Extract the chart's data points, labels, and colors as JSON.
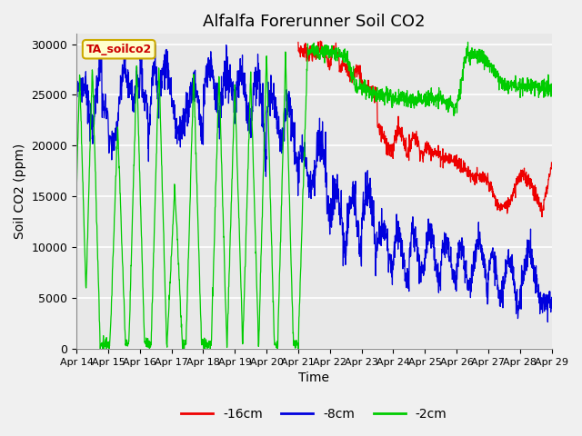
{
  "title": "Alfalfa Forerunner Soil CO2",
  "xlabel": "Time",
  "ylabel": "Soil CO2 (ppm)",
  "ylim": [
    0,
    31000
  ],
  "background_color": "#f0f0f0",
  "plot_bg": "#e8e8e8",
  "legend_label": "TA_soilco2",
  "series_labels": [
    "-16cm",
    "-8cm",
    "-2cm"
  ],
  "series_colors": [
    "#ee0000",
    "#0000dd",
    "#00cc00"
  ],
  "xtick_labels": [
    "Apr 14",
    "Apr 15",
    "Apr 16",
    "Apr 17",
    "Apr 18",
    "Apr 19",
    "Apr 20",
    "Apr 21",
    "Apr 22",
    "Apr 23",
    "Apr 24",
    "Apr 25",
    "Apr 26",
    "Apr 27",
    "Apr 28",
    "Apr 29"
  ],
  "ytick_values": [
    0,
    5000,
    10000,
    15000,
    20000,
    25000,
    30000
  ],
  "grid_color": "#ffffff",
  "title_fontsize": 13,
  "figsize": [
    6.4,
    4.8
  ],
  "dpi": 100
}
